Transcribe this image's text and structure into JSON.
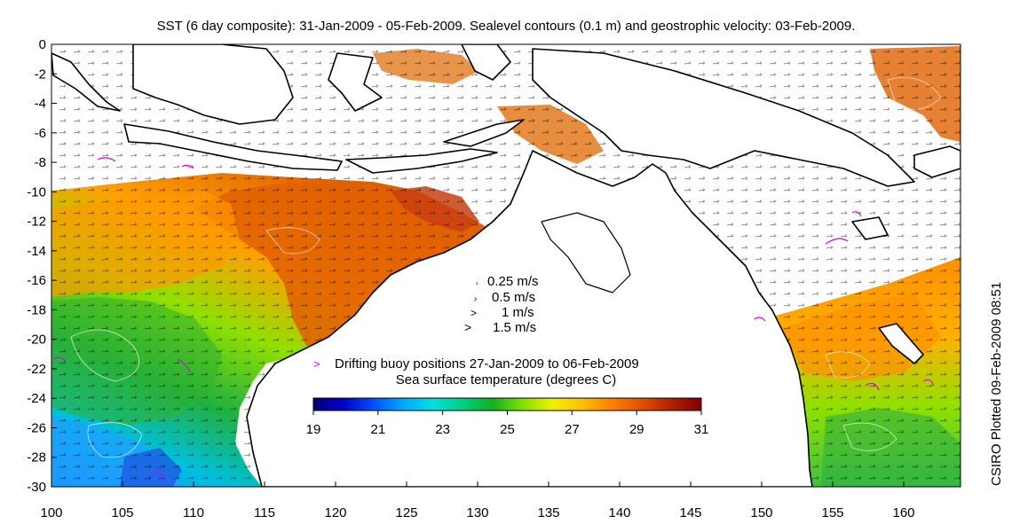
{
  "title": "SST (6 day composite): 31-Jan-2009 - 05-Feb-2009. Sealevel contours (0.1 m) and geostrophic velocity: 03-Feb-2009.",
  "credit": "CSIRO Plotted 09-Feb-2009 08:51",
  "map": {
    "lon_range": [
      100,
      164
    ],
    "lat_range": [
      -30,
      0
    ],
    "lon_ticks": [
      "100",
      "105",
      "110",
      "115",
      "120",
      "125",
      "130",
      "135",
      "140",
      "145",
      "150",
      "155",
      "160"
    ],
    "lat_ticks": [
      "0",
      "-2",
      "-4",
      "-6",
      "-8",
      "-10",
      "-12",
      "-14",
      "-16",
      "-18",
      "-20",
      "-22",
      "-24",
      "-26",
      "-28",
      "-30"
    ]
  },
  "velocity_key": {
    "entries": [
      "0.25 m/s",
      "0.5 m/s",
      "1 m/s",
      "1.5 m/s"
    ]
  },
  "buoy_legend": {
    "marker": ">",
    "marker_color": "#e000e0",
    "text": "Drifting buoy positions 27-Jan-2009 to 06-Feb-2009"
  },
  "colorbar": {
    "label": "Sea surface temperature (degrees C)",
    "range": [
      19,
      31
    ],
    "tick_labels": [
      "19",
      "21",
      "23",
      "25",
      "27",
      "29",
      "31"
    ],
    "colors": [
      "#00007a",
      "#0000c8",
      "#0050ff",
      "#00a8ff",
      "#00e0e0",
      "#00d080",
      "#10b020",
      "#80e000",
      "#f0f000",
      "#ffc000",
      "#ff8000",
      "#e05000",
      "#b02000",
      "#800000"
    ]
  }
}
